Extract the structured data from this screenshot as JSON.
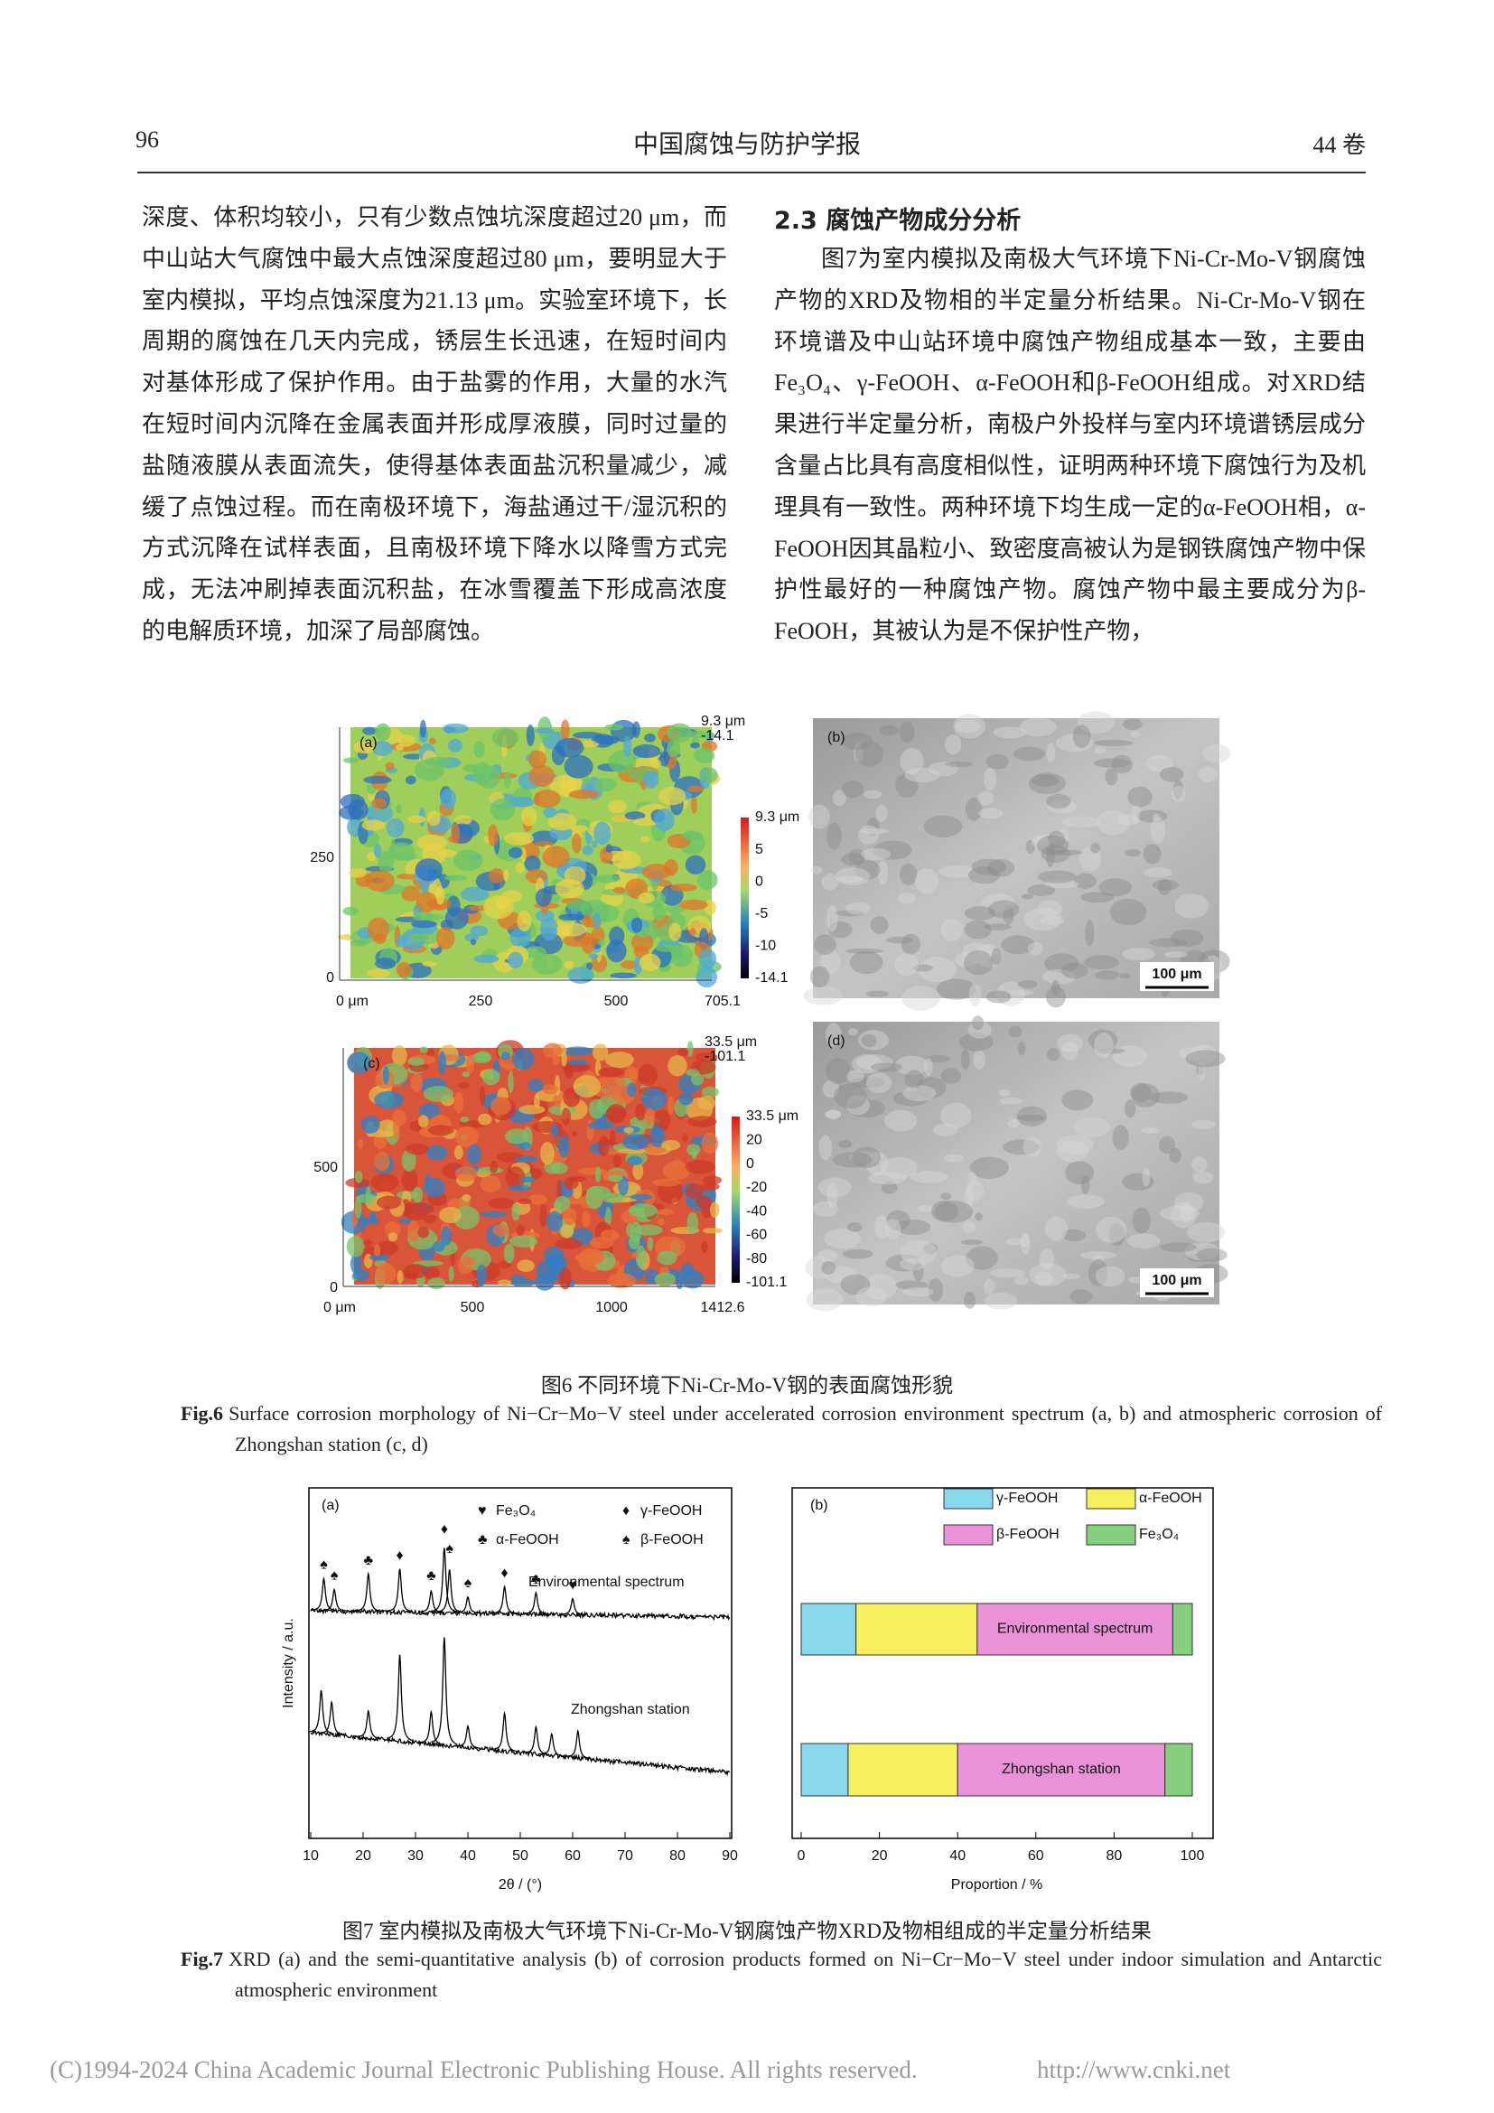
{
  "header": {
    "page": "96",
    "journal": "中国腐蚀与防护学报",
    "volume": "44 卷"
  },
  "left_paragraph": "深度、体积均较小，只有少数点蚀坑深度超过20 μm，而中山站大气腐蚀中最大点蚀深度超过80 μm，要明显大于室内模拟，平均点蚀深度为21.13 μm。实验室环境下，长周期的腐蚀在几天内完成，锈层生长迅速，在短时间内对基体形成了保护作用。由于盐雾的作用，大量的水汽在短时间内沉降在金属表面并形成厚液膜，同时过量的盐随液膜从表面流失，使得基体表面盐沉积量减少，减缓了点蚀过程。而在南极环境下，海盐通过干/湿沉积的方式沉降在试样表面，且南极环境下降水以降雪方式完成，无法冲刷掉表面沉积盐，在冰雪覆盖下形成高浓度的电解质环境，加深了局部腐蚀。",
  "right": {
    "heading": "2.3 腐蚀产物成分分析",
    "paragraph": "图7为室内模拟及南极大气环境下Ni-Cr-Mo-V钢腐蚀产物的XRD及物相的半定量分析结果。Ni-Cr-Mo-V钢在环境谱及中山站环境中腐蚀产物组成基本一致，主要由Fe₃O₄、γ-FeOOH、α-FeOOH和β-FeOOH组成。对XRD结果进行半定量分析，南极户外投样与室内环境谱锈层成分含量占比具有高度相似性，证明两种环境下腐蚀行为及机理具有一致性。两种环境下均生成一定的α-FeOOH相，α-FeOOH因其晶粒小、致密度高被认为是钢铁腐蚀产物中保护性最好的一种腐蚀产物。腐蚀产物中最主要成分为β-FeOOH，其被认为是不保护性产物，"
  },
  "figure6": {
    "panel_a": {
      "label": "(a)",
      "x_labels": [
        "0 μm",
        "250",
        "500",
        "705.1"
      ],
      "y_labels": [
        "250",
        "0"
      ],
      "top_labels": [
        "9.3 μm",
        "-14.1"
      ],
      "colorbar_labels": [
        "9.3 μm",
        "5",
        "0",
        "-5",
        "-10",
        "-14.1"
      ]
    },
    "panel_b": {
      "label": "(b)",
      "scale_bar": "100 μm"
    },
    "panel_c": {
      "label": "(c)",
      "x_labels": [
        "0 μm",
        "500",
        "1000",
        "1412.6"
      ],
      "y_labels": [
        "500",
        "0"
      ],
      "top_labels": [
        "33.5 μm",
        "-101.1"
      ],
      "colorbar_labels": [
        "33.5 μm",
        "20",
        "0",
        "-20",
        "-40",
        "-60",
        "-80",
        "-101.1"
      ]
    },
    "panel_d": {
      "label": "(d)",
      "scale_bar": "100 μm"
    },
    "caption_cn": "图6 不同环境下Ni-Cr-Mo-V钢的表面腐蚀形貌",
    "caption_en_tag": "Fig.6",
    "caption_en": "Surface corrosion morphology of Ni−Cr−Mo−V steel under accelerated corrosion environment spectrum (a, b) and atmospheric corrosion of Zhongshan station (c, d)"
  },
  "chart_data": [
    {
      "type": "line",
      "panel_label": "(a)",
      "xlabel": "2θ / (°)",
      "ylabel": "Intensity / a.u.",
      "xlim": [
        10,
        90
      ],
      "xticks": [
        10,
        20,
        30,
        40,
        50,
        60,
        70,
        80,
        90
      ],
      "legend": [
        {
          "symbol": "♥",
          "label": "Fe₃O₄"
        },
        {
          "symbol": "♦",
          "label": "γ-FeOOH"
        },
        {
          "symbol": "♣",
          "label": "α-FeOOH"
        },
        {
          "symbol": "♠",
          "label": "β-FeOOH"
        }
      ],
      "series": [
        {
          "name": "Environmental spectrum",
          "color": "#000000",
          "x": [
            12.5,
            14.5,
            21,
            27,
            33,
            35.5,
            36.5,
            40,
            47,
            53,
            60
          ],
          "values": [
            0.3,
            0.2,
            0.35,
            0.4,
            0.2,
            0.6,
            0.4,
            0.15,
            0.25,
            0.2,
            0.15
          ]
        },
        {
          "name": "Zhongshan station",
          "color": "#000000",
          "x": [
            12,
            14,
            21,
            27,
            33,
            35.5,
            40,
            47,
            53,
            56,
            61
          ],
          "values": [
            0.4,
            0.3,
            0.25,
            0.8,
            0.3,
            1.0,
            0.2,
            0.35,
            0.25,
            0.2,
            0.25
          ]
        }
      ],
      "markers": [
        {
          "x": 12.5,
          "symbol": "♠"
        },
        {
          "x": 14.5,
          "symbol": "♠"
        },
        {
          "x": 21,
          "symbol": "♣"
        },
        {
          "x": 27,
          "symbol": "♦"
        },
        {
          "x": 33,
          "symbol": "♣"
        },
        {
          "x": 35.5,
          "symbol": "♦"
        },
        {
          "x": 36.5,
          "symbol": "♠"
        },
        {
          "x": 40,
          "symbol": "♠"
        },
        {
          "x": 47,
          "symbol": "♦"
        },
        {
          "x": 53,
          "symbol": "♣"
        },
        {
          "x": 60,
          "symbol": "♥"
        }
      ]
    },
    {
      "type": "stacked-bar",
      "panel_label": "(b)",
      "xlabel": "Proportion / %",
      "xlim": [
        0,
        100
      ],
      "xticks": [
        0,
        20,
        40,
        60,
        80,
        100
      ],
      "categories": [
        "Environmental spectrum",
        "Zhongshan station"
      ],
      "series": [
        {
          "name": "γ-FeOOH",
          "color": "#86d8ea",
          "values": [
            14,
            12
          ]
        },
        {
          "name": "α-FeOOH",
          "color": "#f6f05e",
          "values": [
            31,
            28
          ]
        },
        {
          "name": "β-FeOOH",
          "color": "#ea92d8",
          "values": [
            50,
            53
          ]
        },
        {
          "name": "Fe₃O₄",
          "color": "#86cf7e",
          "values": [
            5,
            7
          ]
        }
      ]
    }
  ],
  "figure7": {
    "caption_cn": "图7 室内模拟及南极大气环境下Ni-Cr-Mo-V钢腐蚀产物XRD及物相组成的半定量分析结果",
    "caption_en_tag": "Fig.7",
    "caption_en": "XRD (a) and the semi-quantitative analysis (b) of corrosion products formed on Ni−Cr−Mo−V steel under indoor simulation and Antarctic atmospheric environment"
  },
  "footer": {
    "copyright": "(C)1994-2024 China Academic Journal Electronic Publishing House. All rights reserved.",
    "url": "http://www.cnki.net"
  }
}
